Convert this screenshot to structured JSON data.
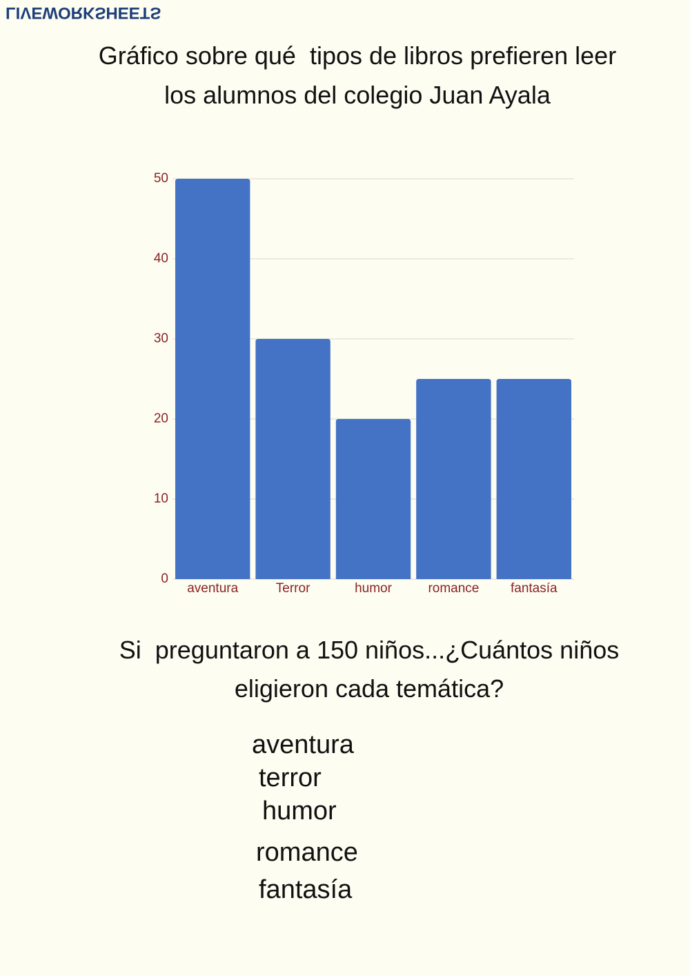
{
  "logo": "LIVEWORKSHEETS",
  "chart_data": {
    "type": "bar",
    "title": "Gráfico sobre qué  tipos de libros prefieren leer los alumnos del colegio Juan Ayala",
    "categories": [
      "aventura",
      "Terror",
      "humor",
      "romance",
      "fantasía"
    ],
    "values": [
      50,
      30,
      20,
      25,
      25
    ],
    "color": "#4472c4",
    "ylim": [
      0,
      50
    ],
    "yticks": [
      0,
      10,
      20,
      30,
      40,
      50
    ],
    "grid": true
  },
  "question": "Si  preguntaron a 150 niños...¿Cuántos niños eligieron cada temática?",
  "answers": [
    "aventura",
    "terror",
    "humor",
    "romance",
    "fantasía"
  ]
}
